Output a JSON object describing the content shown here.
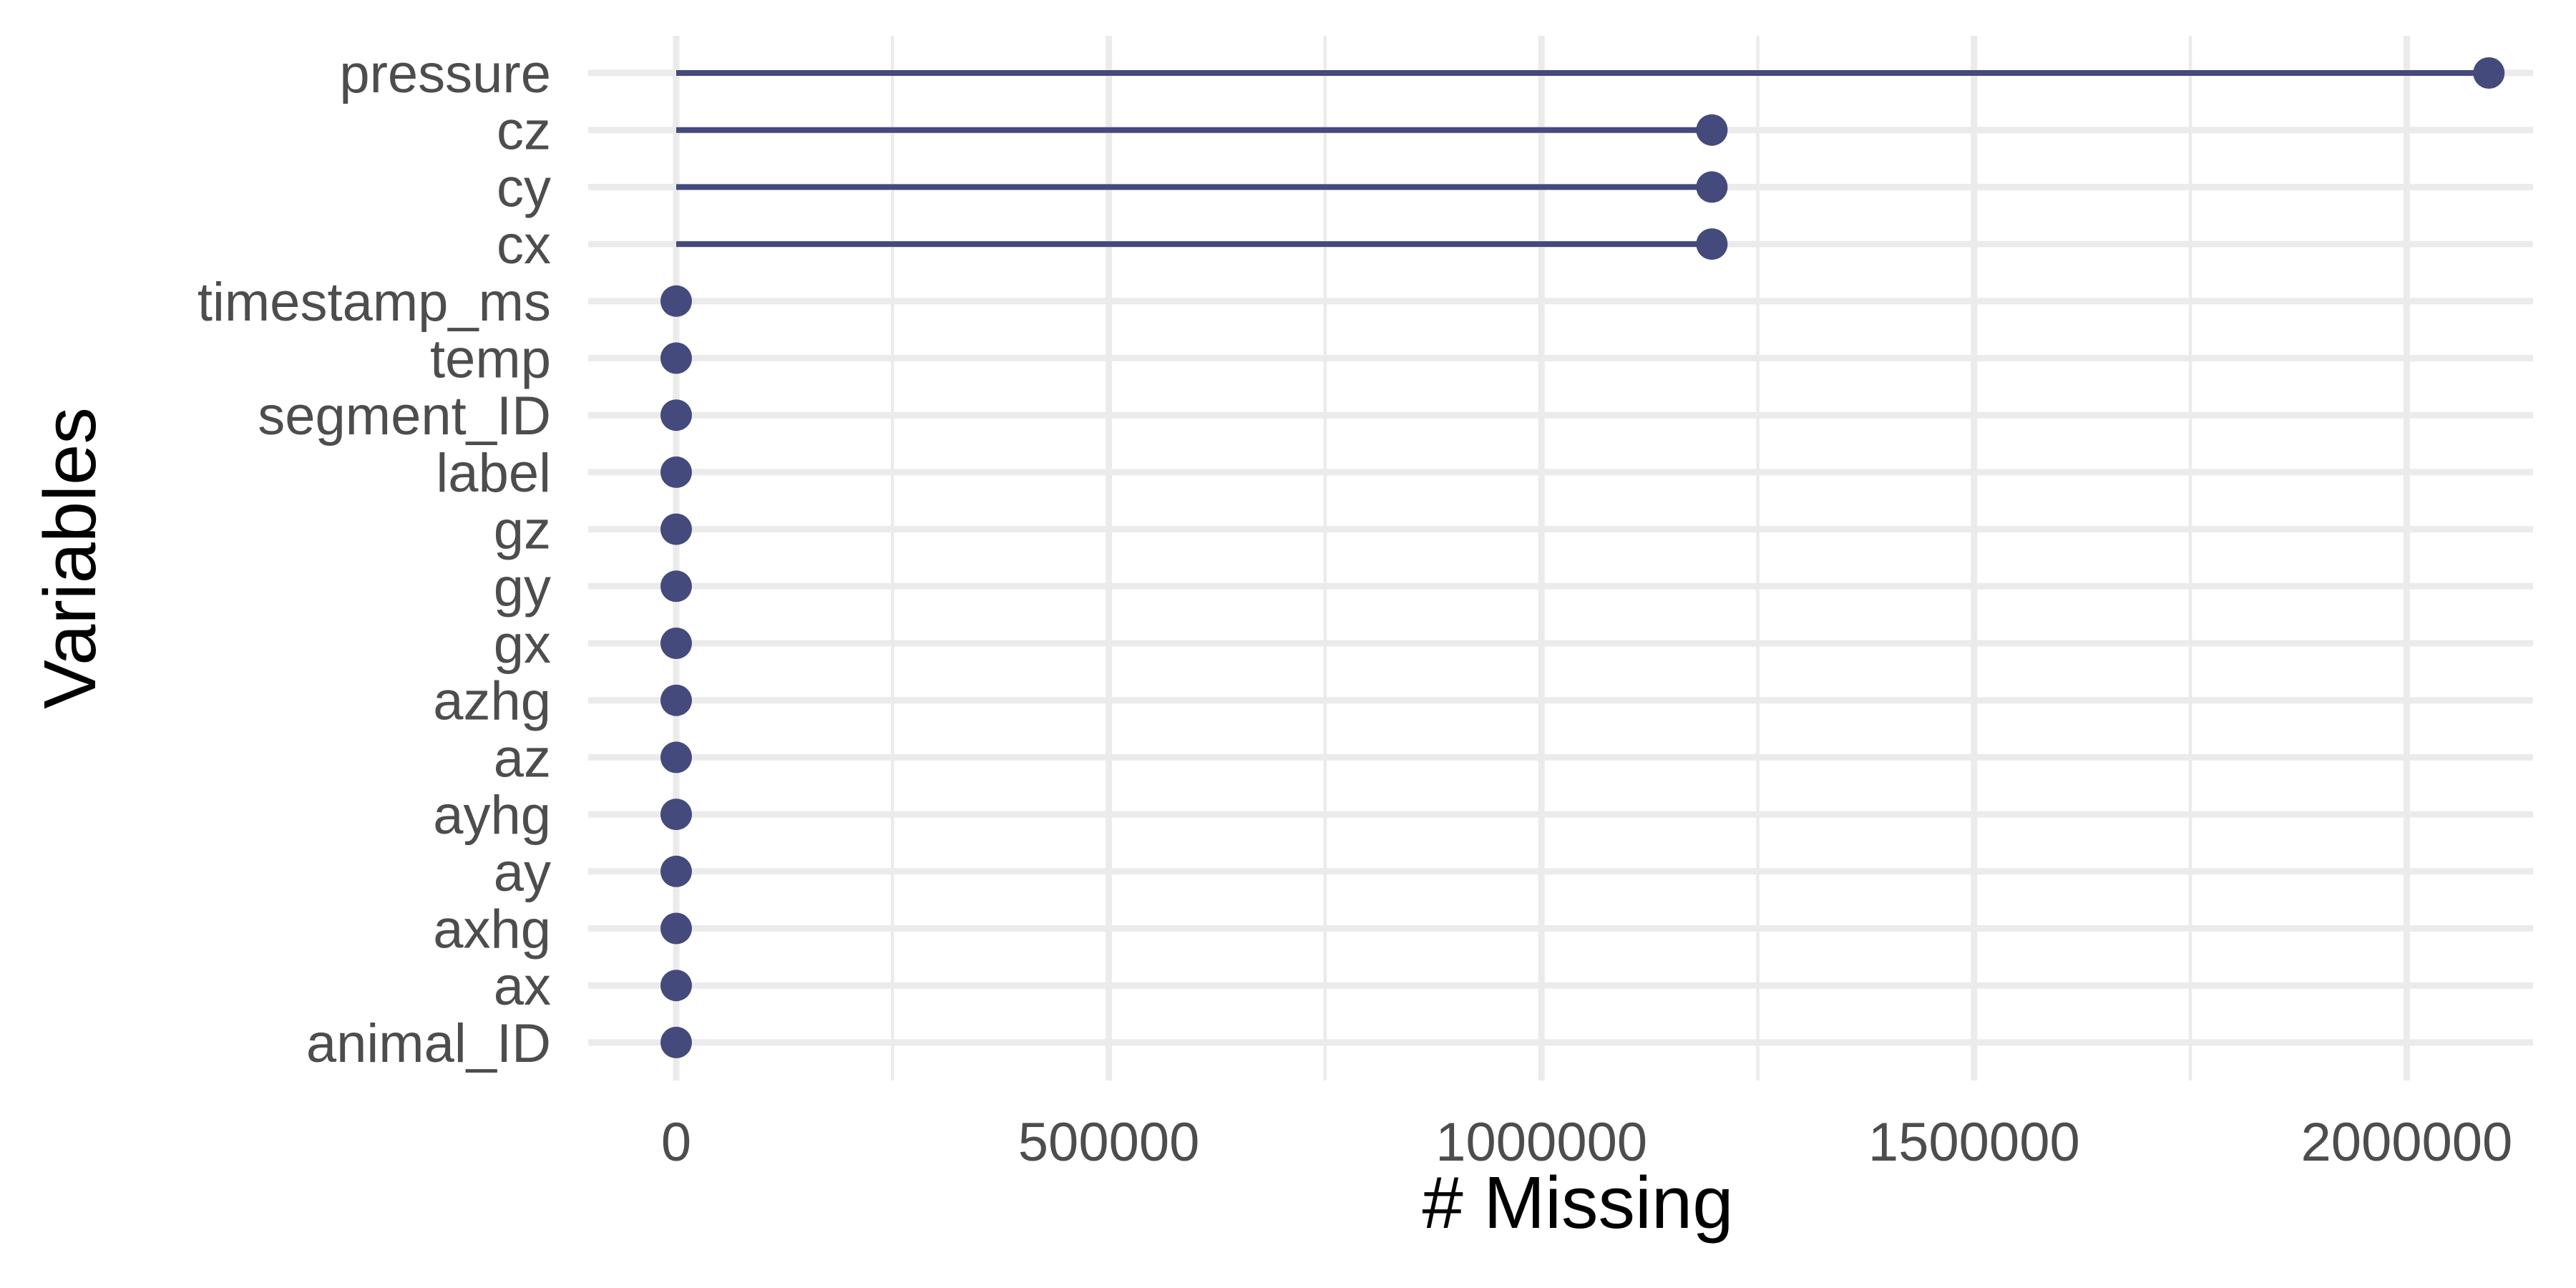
{
  "chart_data": {
    "type": "lollipop",
    "xlabel": "# Missing",
    "ylabel": "Variables",
    "xlim": [
      -100000,
      2200000
    ],
    "x_ticks": [
      0,
      500000,
      1000000,
      1500000,
      2000000
    ],
    "x_tick_labels": [
      "0",
      "500000",
      "1000000",
      "1500000",
      "2000000"
    ],
    "grid": true,
    "color": "#454a7c",
    "categories": [
      "pressure",
      "cz",
      "cy",
      "cx",
      "timestamp_ms",
      "temp",
      "segment_ID",
      "label",
      "gz",
      "gy",
      "gx",
      "azhg",
      "az",
      "ayhg",
      "ay",
      "axhg",
      "ax",
      "animal_ID"
    ],
    "values": [
      2095000,
      1197000,
      1197000,
      1197000,
      0,
      0,
      0,
      0,
      0,
      0,
      0,
      0,
      0,
      0,
      0,
      0,
      0,
      0
    ]
  }
}
